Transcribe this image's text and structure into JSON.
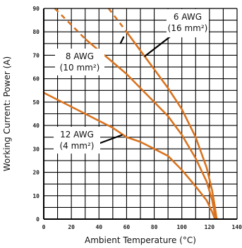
{
  "chart_data": {
    "type": "line",
    "title": "",
    "xlabel": "Ambient Temperature (°C)",
    "ylabel": "Working Current: Power (A)",
    "xlim": [
      0,
      140
    ],
    "ylim": [
      0,
      90
    ],
    "x_ticks": [
      0,
      20,
      40,
      60,
      80,
      100,
      120,
      140
    ],
    "y_ticks": [
      0,
      10,
      20,
      30,
      40,
      50,
      60,
      70,
      80,
      90
    ],
    "x_tick_labels": [
      "0",
      "20",
      "40",
      "60",
      "80",
      "100",
      "120",
      "140"
    ],
    "y_tick_labels": [
      "0",
      "10",
      "20",
      "30",
      "40",
      "50",
      "60",
      "70",
      "80",
      "90"
    ],
    "grid": true,
    "series_color": "#d9731f",
    "series": [
      {
        "label_lines": [
          "6 AWG",
          "(16 mm²)"
        ],
        "x": [
          47,
          60,
          70,
          80,
          90,
          100,
          110,
          118,
          122,
          124,
          125,
          125.5
        ],
        "y": [
          90,
          80,
          72,
          64,
          56,
          47,
          35,
          22,
          12,
          5,
          1,
          0
        ],
        "dashed_until_x": 60
      },
      {
        "label_lines": [
          "8 AWG",
          "(10 mm²)"
        ],
        "x": [
          8,
          20,
          30,
          40,
          50,
          60,
          70,
          80,
          90,
          100,
          110,
          118,
          122,
          124.5
        ],
        "y": [
          90,
          83,
          77,
          72,
          67,
          62,
          56,
          50,
          44,
          36,
          26,
          16,
          8,
          0
        ],
        "dashed_until_x": 30
      },
      {
        "label_lines": [
          "12 AWG",
          "(4 mm²)"
        ],
        "x": [
          0,
          10,
          20,
          30,
          40,
          50,
          60,
          70,
          80,
          90,
          100,
          110,
          118,
          122,
          124
        ],
        "y": [
          54,
          51,
          48,
          45,
          42,
          39,
          35,
          33,
          30,
          27,
          21,
          14,
          8,
          3,
          0
        ]
      }
    ]
  }
}
